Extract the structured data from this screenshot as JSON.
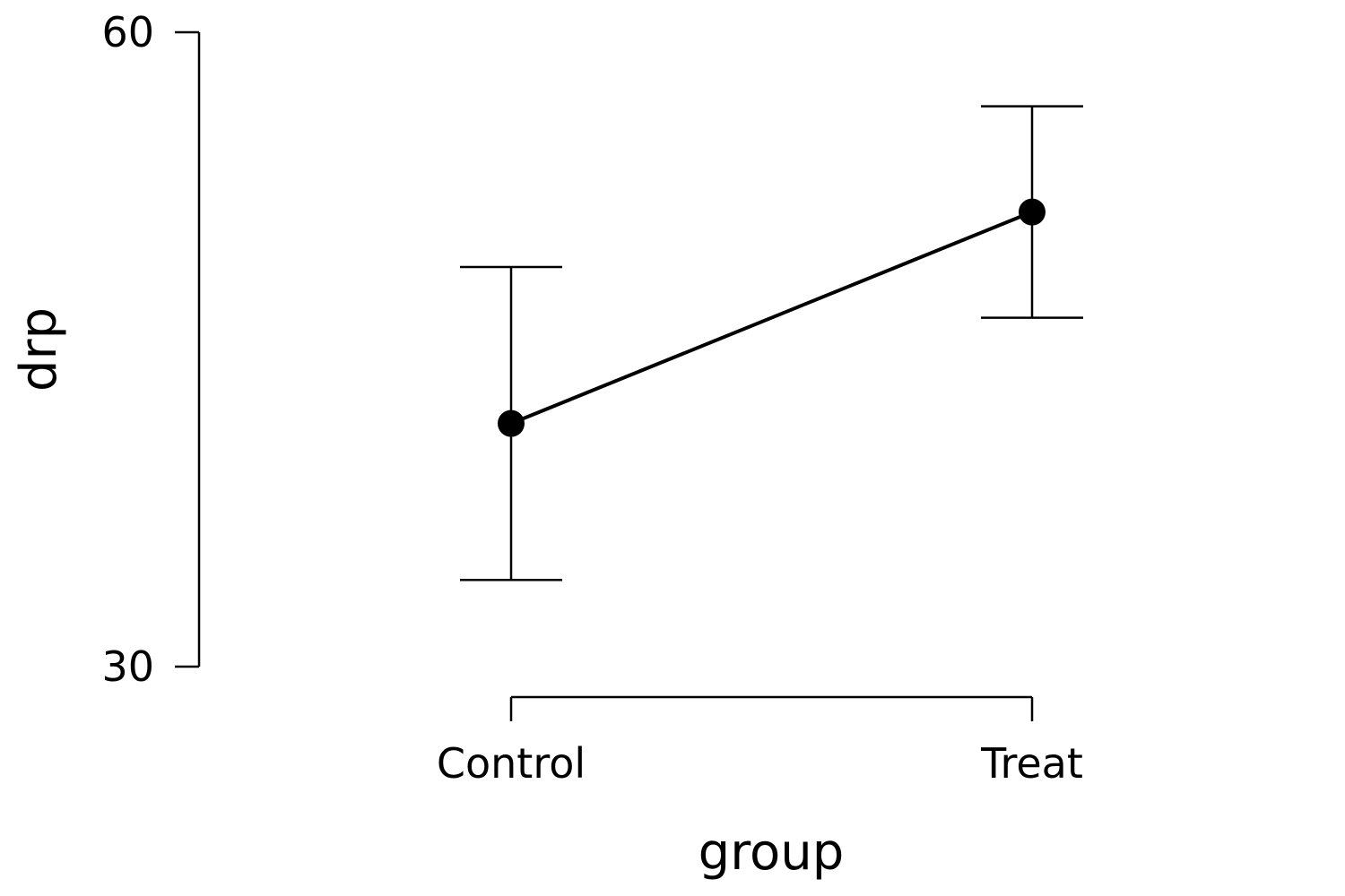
{
  "chart_data": {
    "type": "line",
    "xlabel": "group",
    "ylabel": "drp",
    "categories": [
      "Control",
      "Treat"
    ],
    "ylim": [
      30,
      60
    ],
    "y_ticks": [
      30,
      60
    ],
    "y_tick_labels": [
      "30",
      "60"
    ],
    "series": [
      {
        "values": [
          41.5,
          51.5
        ],
        "error_lower": [
          34.1,
          46.5
        ],
        "error_upper": [
          48.9,
          56.5
        ]
      }
    ],
    "grid": false,
    "legend": "none",
    "colors": {
      "line": "#000000",
      "marker": "#000000"
    }
  }
}
